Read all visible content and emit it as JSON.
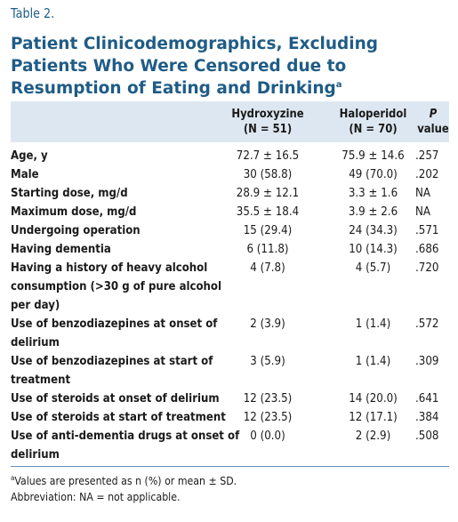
{
  "table_number": "Table 2.",
  "title": "Patient Clinicodemographics, Excluding Patients Who Were Censored due to Resumption of Eating and Drinking",
  "title_footnote_mark": "a",
  "columns": {
    "hydroxyzine": {
      "line1": "Hydroxyzine",
      "line2": "(N = 51)"
    },
    "haloperidol": {
      "line1": "Haloperidol",
      "line2": "(N = 70)"
    },
    "p_value": {
      "line1": "P",
      "line2": "value"
    }
  },
  "rows": [
    {
      "label": [
        "Age, y"
      ],
      "hydroxyzine": "72.7 ± 16.5",
      "haloperidol": "75.9 ± 14.6",
      "p": ".257"
    },
    {
      "label": [
        "Male"
      ],
      "hydroxyzine": "30 (58.8)",
      "haloperidol": "49 (70.0)",
      "p": ".202"
    },
    {
      "label": [
        "Starting dose, mg/d"
      ],
      "hydroxyzine": "28.9 ± 12.1",
      "haloperidol": "3.3 ± 1.6",
      "p": "NA"
    },
    {
      "label": [
        "Maximum dose, mg/d"
      ],
      "hydroxyzine": "35.5 ± 18.4",
      "haloperidol": "3.9 ± 2.6",
      "p": "NA"
    },
    {
      "label": [
        "Undergoing operation"
      ],
      "hydroxyzine": "15 (29.4)",
      "haloperidol": "24 (34.3)",
      "p": ".571"
    },
    {
      "label": [
        "Having dementia"
      ],
      "hydroxyzine": "6 (11.8)",
      "haloperidol": "10 (14.3)",
      "p": ".686"
    },
    {
      "label": [
        "Having a history of heavy alcohol",
        "consumption (>30 g of pure alcohol",
        "per day)"
      ],
      "hydroxyzine": "4 (7.8)",
      "haloperidol": "4 (5.7)",
      "p": ".720"
    },
    {
      "label": [
        "Use of benzodiazepines at onset of",
        "delirium"
      ],
      "hydroxyzine": "2 (3.9)",
      "haloperidol": "1 (1.4)",
      "p": ".572"
    },
    {
      "label": [
        "Use of benzodiazepines at start of",
        "treatment"
      ],
      "hydroxyzine": "3 (5.9)",
      "haloperidol": "1 (1.4)",
      "p": ".309"
    },
    {
      "label": [
        "Use of steroids at onset of delirium"
      ],
      "hydroxyzine": "12 (23.5)",
      "haloperidol": "14 (20.0)",
      "p": ".641"
    },
    {
      "label": [
        "Use of steroids at start of treatment"
      ],
      "hydroxyzine": "12 (23.5)",
      "haloperidol": "12 (17.1)",
      "p": ".384"
    },
    {
      "label": [
        "Use of anti-dementia drugs at onset of",
        "delirium"
      ],
      "hydroxyzine": "0 (0.0)",
      "haloperidol": "2 (2.9)",
      "p": ".508"
    }
  ],
  "footnotes": {
    "mark": "a",
    "values_note": "Values are presented as n (%) or mean ± SD.",
    "abbreviation": "Abbreviation: NA = not applicable."
  }
}
